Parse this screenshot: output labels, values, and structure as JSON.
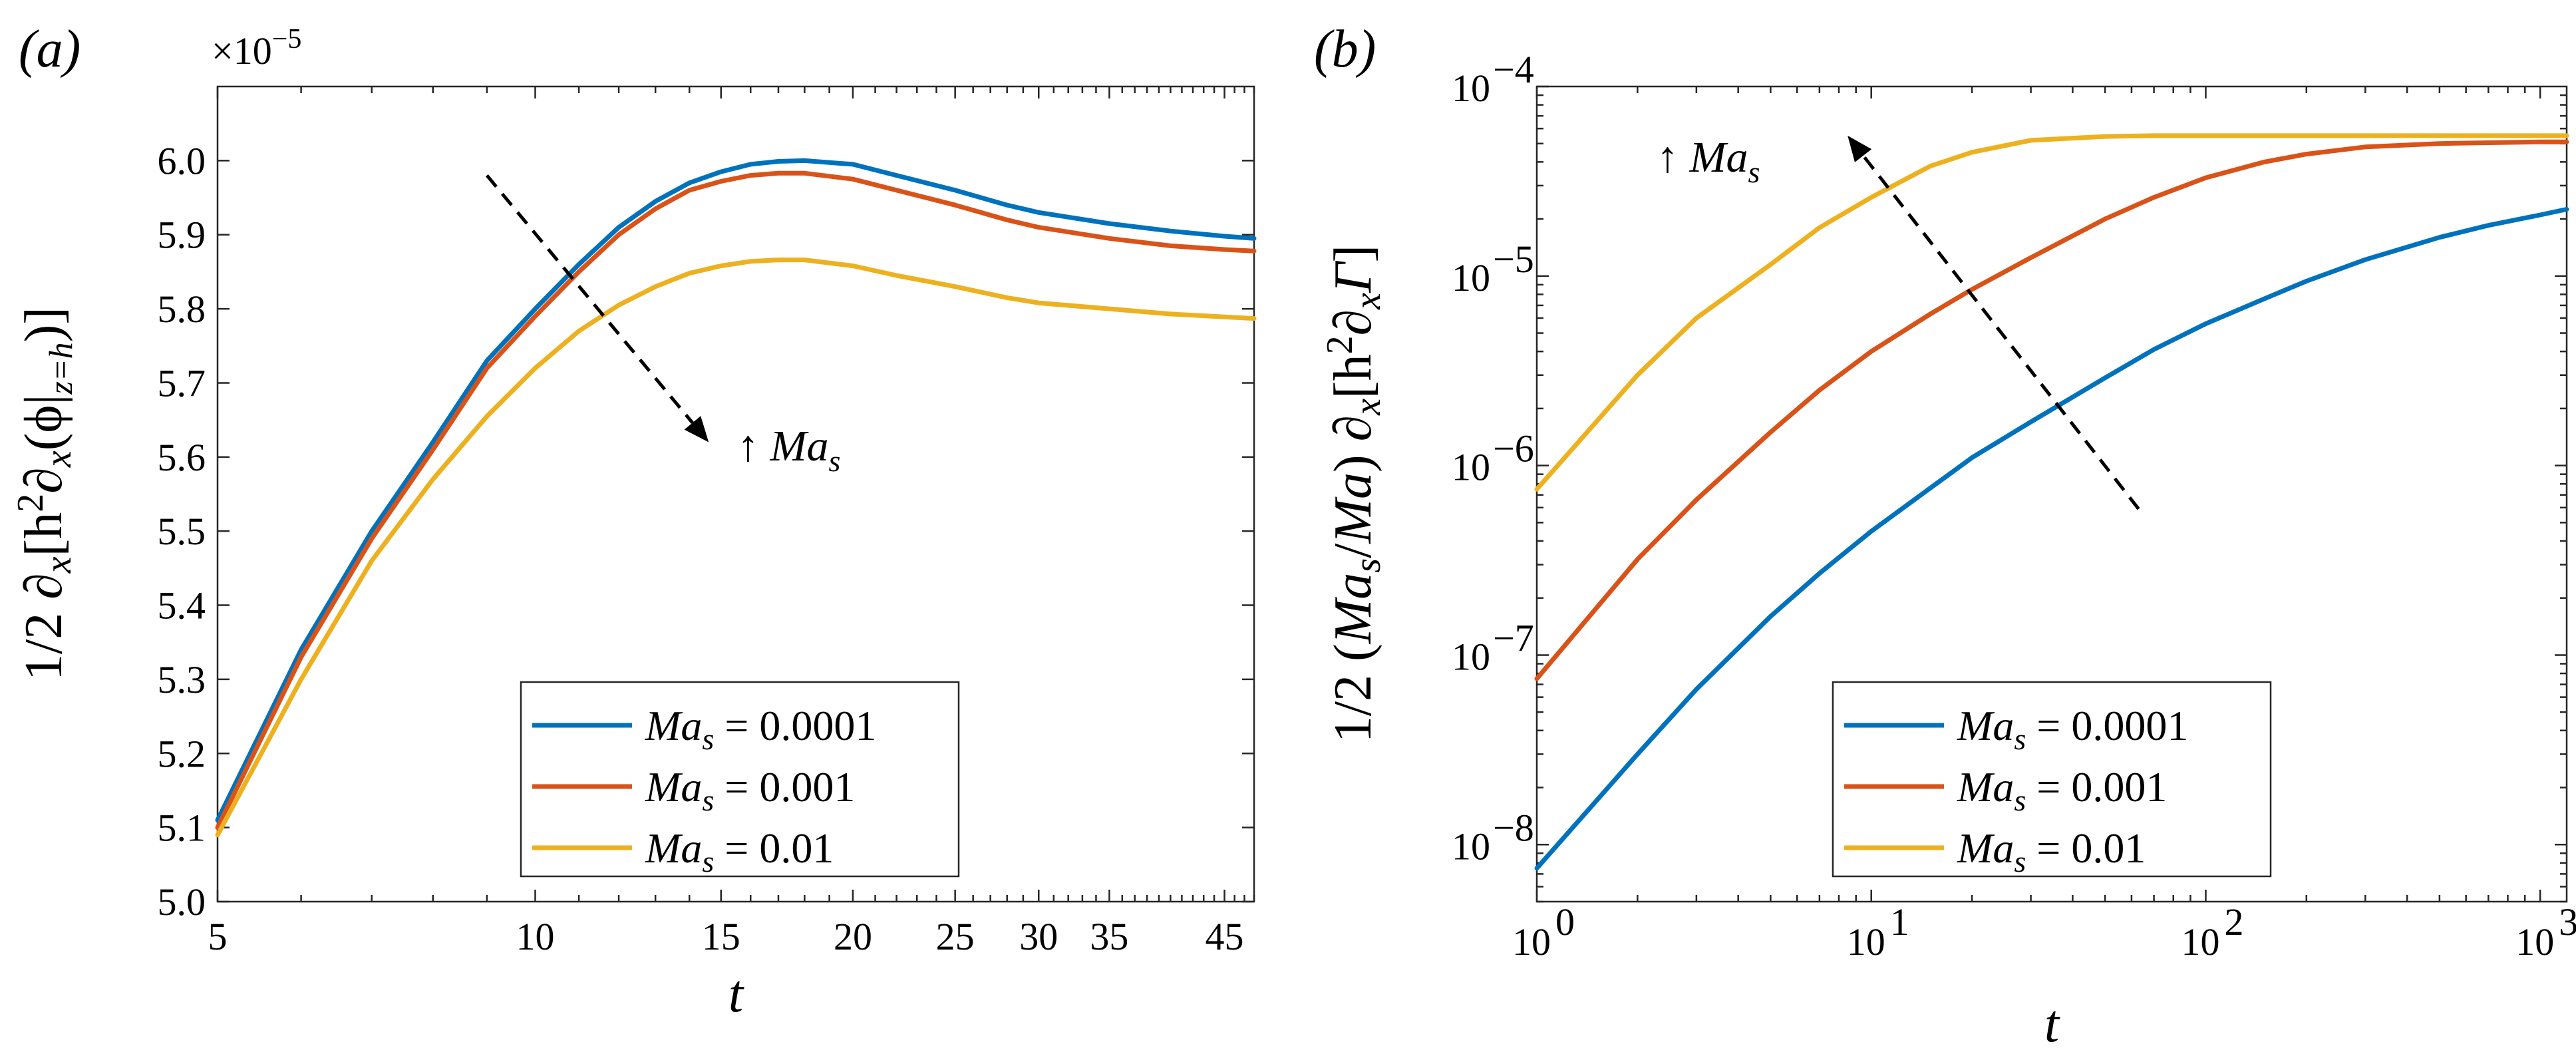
{
  "colors": {
    "blue": "#0072BD",
    "orange": "#D95319",
    "yellow": "#EDB120"
  },
  "chart_data": [
    {
      "type": "line",
      "panel_label": "(a)",
      "xscale": "log",
      "xlim": [
        5,
        48
      ],
      "ylim": [
        5.0,
        6.1
      ],
      "exponent_label": "×10",
      "exponent_power": "−5",
      "xlabel": "t",
      "ylabel": "1/2 ∂x[h²∂x(ϕ|z=h)]",
      "ylabel_parts": {
        "pre": "1/2 ∂",
        "x1": "x",
        "mid": "[h",
        "sq": "2",
        "d2": "∂",
        "x2": "x",
        "paren": "(ϕ|",
        "zh": "z=h",
        "close": ")]"
      },
      "xticks": [
        5,
        10,
        15,
        20,
        25,
        30,
        35,
        45
      ],
      "xtick_labels": [
        "5",
        "10",
        "15",
        "20",
        "25",
        "30",
        "35",
        "45"
      ],
      "yticks": [
        5.0,
        5.1,
        5.2,
        5.3,
        5.4,
        5.5,
        5.6,
        5.7,
        5.8,
        5.9,
        6.0
      ],
      "ytick_labels": [
        "5.0",
        "5.1",
        "5.2",
        "5.3",
        "5.4",
        "5.5",
        "5.6",
        "5.7",
        "5.8",
        "5.9",
        "6.0"
      ],
      "x": [
        5,
        6,
        7,
        8,
        9,
        10,
        11,
        12,
        13,
        14,
        15,
        16,
        17,
        18,
        20,
        22,
        25,
        28,
        30,
        35,
        40,
        45,
        48
      ],
      "series": [
        {
          "name": "Mas = 0.0001",
          "name_main": "Ma",
          "name_sub": "s",
          "name_value": " = 0.0001",
          "color": "#0072BD",
          "values": [
            5.11,
            5.34,
            5.5,
            5.62,
            5.73,
            5.8,
            5.86,
            5.91,
            5.945,
            5.97,
            5.985,
            5.995,
            5.999,
            6.0,
            5.995,
            5.98,
            5.96,
            5.94,
            5.93,
            5.915,
            5.905,
            5.898,
            5.895
          ]
        },
        {
          "name": "Mas = 0.001",
          "name_main": "Ma",
          "name_sub": "s",
          "name_value": " = 0.001",
          "color": "#D95319",
          "values": [
            5.1,
            5.33,
            5.49,
            5.61,
            5.72,
            5.79,
            5.85,
            5.9,
            5.935,
            5.96,
            5.972,
            5.98,
            5.983,
            5.983,
            5.975,
            5.96,
            5.94,
            5.92,
            5.91,
            5.895,
            5.885,
            5.88,
            5.878
          ]
        },
        {
          "name": "Mas = 0.01",
          "name_main": "Ma",
          "name_sub": "s",
          "name_value": " = 0.01",
          "color": "#EDB120",
          "values": [
            5.09,
            5.3,
            5.46,
            5.57,
            5.655,
            5.72,
            5.77,
            5.805,
            5.83,
            5.848,
            5.858,
            5.864,
            5.866,
            5.866,
            5.858,
            5.845,
            5.83,
            5.815,
            5.808,
            5.8,
            5.793,
            5.789,
            5.787
          ]
        }
      ],
      "annotation": {
        "text": "↑ Ma",
        "sub": "s",
        "arrow_from": [
          9,
          5.98
        ],
        "arrow_to": [
          14.6,
          5.62
        ],
        "direction": "down-right"
      },
      "legend_location": "bottom-center"
    },
    {
      "type": "line",
      "panel_label": "(b)",
      "xscale": "log",
      "yscale": "log",
      "xlim": [
        1,
        1200
      ],
      "ylim": [
        5e-09,
        0.0001
      ],
      "xlabel": "t",
      "ylabel": "1/2 (Mas/Ma) ∂x[h²∂xΓ]",
      "ylabel_parts": {
        "pre": "1/2 (",
        "ma1": "Ma",
        "s": "s",
        "slash": "/",
        "ma2": "Ma",
        "close1": ") ∂",
        "x1": "x",
        "br": "[h",
        "sq": "2",
        "d2": "∂",
        "x2": "x",
        "gamma": "Γ",
        "close2": "]"
      },
      "xtick_base": [
        "10",
        "10",
        "10",
        "10"
      ],
      "xtick_exps": [
        "0",
        "1",
        "2",
        "3"
      ],
      "xtick_values": [
        1,
        10,
        100,
        1000
      ],
      "ytick_base": [
        "10",
        "10",
        "10",
        "10",
        "10"
      ],
      "ytick_exps": [
        "−8",
        "−7",
        "−6",
        "−5",
        "−4"
      ],
      "ytick_values": [
        1e-08,
        1e-07,
        1e-06,
        1e-05,
        0.0001
      ],
      "x": [
        1,
        2,
        3,
        5,
        7,
        10,
        15,
        20,
        30,
        50,
        70,
        100,
        150,
        200,
        300,
        500,
        700,
        1000,
        1200
      ],
      "series": [
        {
          "name": "Mas = 0.0001",
          "name_main": "Ma",
          "name_sub": "s",
          "name_value": " = 0.0001",
          "color": "#0072BD",
          "values": [
            7.5e-09,
            3e-08,
            6.6e-08,
            1.6e-07,
            2.7e-07,
            4.5e-07,
            7.6e-07,
            1.1e-06,
            1.7e-06,
            2.9e-06,
            4.1e-06,
            5.6e-06,
            7.6e-06,
            9.4e-06,
            1.22e-05,
            1.6e-05,
            1.85e-05,
            2.1e-05,
            2.25e-05
          ]
        },
        {
          "name": "Mas = 0.001",
          "name_main": "Ma",
          "name_sub": "s",
          "name_value": " = 0.001",
          "color": "#D95319",
          "values": [
            7.5e-08,
            3.2e-07,
            6.6e-07,
            1.5e-06,
            2.5e-06,
            4e-06,
            6.3e-06,
            8.5e-06,
            1.25e-05,
            2e-05,
            2.6e-05,
            3.3e-05,
            4e-05,
            4.4e-05,
            4.8e-05,
            5e-05,
            5.05e-05,
            5.1e-05,
            5.1e-05
          ]
        },
        {
          "name": "Mas = 0.01",
          "name_main": "Ma",
          "name_sub": "s",
          "name_value": " = 0.01",
          "color": "#EDB120",
          "values": [
            7.5e-07,
            3e-06,
            6e-06,
            1.15e-05,
            1.8e-05,
            2.6e-05,
            3.8e-05,
            4.5e-05,
            5.2e-05,
            5.45e-05,
            5.5e-05,
            5.5e-05,
            5.5e-05,
            5.5e-05,
            5.5e-05,
            5.5e-05,
            5.5e-05,
            5.5e-05,
            5.5e-05
          ]
        }
      ],
      "annotation": {
        "text": "↑ Ma",
        "sub": "s",
        "arrow_from": [
          63,
          5.9e-07
        ],
        "arrow_to": [
          8.5,
          5.5e-05
        ],
        "direction": "up-left"
      },
      "legend_location": "bottom-center"
    }
  ]
}
